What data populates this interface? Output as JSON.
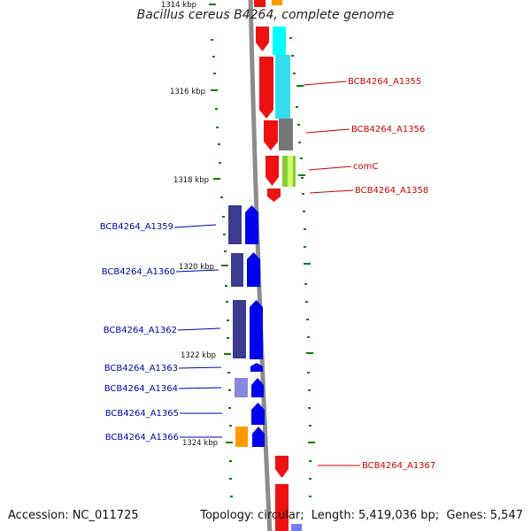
{
  "title": "Bacillus cereus B4264, complete genome",
  "footer": {
    "accession_label": "Accession:",
    "accession": "NC_011725",
    "topology_label": "Topology:",
    "topology": "circular;",
    "length_label": "Length:",
    "length": "5,419,036 bp;",
    "genes_label": "Genes:",
    "genes": "5,547"
  },
  "colors": {
    "backbone": "#8c8c8c",
    "tick": "#008000",
    "forward_label": "#cc0000",
    "reverse_label": "#0000aa"
  },
  "ticks": [
    {
      "label": "1314 kbp"
    },
    {
      "label": "1316 kbp"
    },
    {
      "label": "1318 kbp"
    },
    {
      "label": "1320 kbp"
    },
    {
      "label": "1322 kbp"
    },
    {
      "label": "1324 kbp"
    }
  ],
  "forward_labels": [
    {
      "id": "fl1",
      "text": "BCB4264_A1355"
    },
    {
      "id": "fl2",
      "text": "BCB4264_A1356"
    },
    {
      "id": "fl3",
      "text": "comC"
    },
    {
      "id": "fl4",
      "text": "BCB4264_A1358"
    },
    {
      "id": "fl5",
      "text": "BCB4264_A1367"
    }
  ],
  "reverse_labels": [
    {
      "id": "rl1",
      "text": "BCB4264_A1359"
    },
    {
      "id": "rl2",
      "text": "BCB4264_A1360"
    },
    {
      "id": "rl3",
      "text": "BCB4264_A1362"
    },
    {
      "id": "rl4",
      "text": "BCB4264_A1363"
    },
    {
      "id": "rl5",
      "text": "BCB4264_A1364"
    },
    {
      "id": "rl6",
      "text": "BCB4264_A1365"
    },
    {
      "id": "rl7",
      "text": "BCB4264_A1366"
    }
  ]
}
